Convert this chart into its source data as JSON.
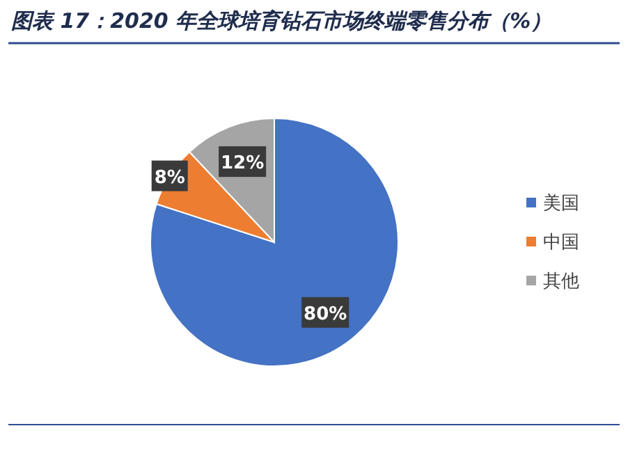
{
  "chart_data": {
    "type": "pie",
    "title": "图表 17：2020 年全球培育钻石市场终端零售分布（%）",
    "categories": [
      "美国",
      "中国",
      "其他"
    ],
    "values": [
      80,
      8,
      12
    ],
    "colors": [
      "#4472c4",
      "#ed7d31",
      "#a5a5a5"
    ],
    "value_labels": [
      "80%",
      "8%",
      "12%"
    ],
    "legend": "right"
  }
}
